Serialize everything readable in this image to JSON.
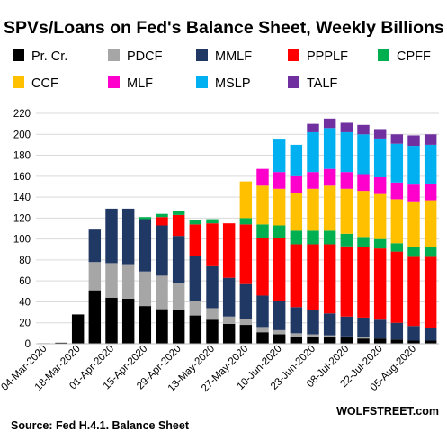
{
  "title": "SPVs/Loans  on Fed's Balance Sheet, Weekly Billions $",
  "source": "Source: Fed H.4.1. Balance Sheet",
  "brand": "WOLFSTREET.com",
  "chart_data": {
    "type": "bar",
    "stacked": true,
    "title": "SPVs/Loans  on Fed's Balance Sheet, Weekly Billions $",
    "xlabel": "",
    "ylabel": "",
    "ylim": [
      0,
      220
    ],
    "yticks": [
      0,
      20,
      40,
      60,
      80,
      100,
      120,
      140,
      160,
      180,
      200,
      220
    ],
    "grid": true,
    "legend_position": "top",
    "categories": [
      "04-Mar-2020",
      "11-Mar-2020",
      "18-Mar-2020",
      "25-Mar-2020",
      "01-Apr-2020",
      "08-Apr-2020",
      "15-Apr-2020",
      "22-Apr-2020",
      "29-Apr-2020",
      "06-May-2020",
      "13-May-2020",
      "20-May-2020",
      "27-May-2020",
      "03-Jun-2020",
      "10-Jun-2020",
      "17-Jun-2020",
      "23-Jun-2020",
      "01-Jul-2020",
      "08-Jul-2020",
      "15-Jul-2020",
      "22-Jul-2020",
      "29-Jul-2020",
      "05-Aug-2020",
      "12-Aug-2020"
    ],
    "labeled_ticks": [
      "04-Mar-2020",
      "18-Mar-2020",
      "01-Apr-2020",
      "15-Apr-2020",
      "29-Apr-2020",
      "13-May-2020",
      "27-May-2020",
      "10-Jun-2020",
      "23-Jun-2020",
      "08-Jul-2020",
      "22-Jul-2020",
      "05-Aug-2020"
    ],
    "series": [
      {
        "name": "Pr. Cr.",
        "color": "#000000",
        "values": [
          0.5,
          1,
          28,
          51,
          44,
          43,
          36,
          33,
          32,
          27,
          23,
          19,
          18,
          11,
          9,
          7,
          7,
          6,
          6,
          5,
          5,
          4,
          3,
          3
        ]
      },
      {
        "name": "PDCF",
        "color": "#a6a6a6",
        "values": [
          0,
          0,
          0,
          27,
          33,
          33,
          33,
          32,
          26,
          14,
          11,
          7,
          6,
          5,
          4,
          3,
          2,
          2,
          1,
          1,
          0,
          0,
          0,
          0
        ]
      },
      {
        "name": "MMLF",
        "color": "#203864",
        "values": [
          0,
          0,
          0,
          31,
          52,
          53,
          50,
          48,
          45,
          43,
          40,
          37,
          33,
          30,
          28,
          25,
          23,
          21,
          19,
          19,
          18,
          16,
          14,
          12
        ]
      },
      {
        "name": "PPPLF",
        "color": "#ff0000",
        "values": [
          0,
          0,
          0,
          0,
          0,
          0,
          0,
          8,
          20,
          30,
          41,
          52,
          57,
          55,
          60,
          60,
          63,
          66,
          67,
          67,
          68,
          68,
          66,
          68
        ]
      },
      {
        "name": "CPFF",
        "color": "#00b050",
        "values": [
          0,
          0,
          0,
          0,
          0,
          0,
          2,
          3,
          4,
          4,
          4,
          0,
          6,
          13,
          12,
          13,
          13,
          13,
          12,
          10,
          9,
          8,
          9,
          9
        ]
      },
      {
        "name": "CCF",
        "color": "#ffc000",
        "values": [
          0,
          0,
          0,
          0,
          0,
          0,
          0,
          0,
          0,
          0,
          0,
          0,
          35,
          37,
          35,
          36,
          40,
          43,
          43,
          44,
          43,
          42,
          44,
          45
        ]
      },
      {
        "name": "MLF",
        "color": "#ff00cc",
        "values": [
          0,
          0,
          0,
          0,
          0,
          0,
          0,
          0,
          0,
          0,
          0,
          0,
          0,
          16,
          16,
          16,
          16,
          16,
          16,
          16,
          16,
          16,
          16,
          16
        ]
      },
      {
        "name": "MSLP",
        "color": "#00b0f0",
        "values": [
          0,
          0,
          0,
          0,
          0,
          0,
          0,
          0,
          0,
          0,
          0,
          0,
          0,
          0,
          31,
          30,
          38,
          39,
          38,
          38,
          37,
          37,
          37,
          37
        ]
      },
      {
        "name": "TALF",
        "color": "#7030a0",
        "values": [
          0,
          0,
          0,
          0,
          0,
          0,
          0,
          0,
          0,
          0,
          0,
          0,
          0,
          0,
          0,
          0,
          8,
          9,
          9,
          9,
          9,
          9,
          10,
          10
        ]
      }
    ]
  }
}
